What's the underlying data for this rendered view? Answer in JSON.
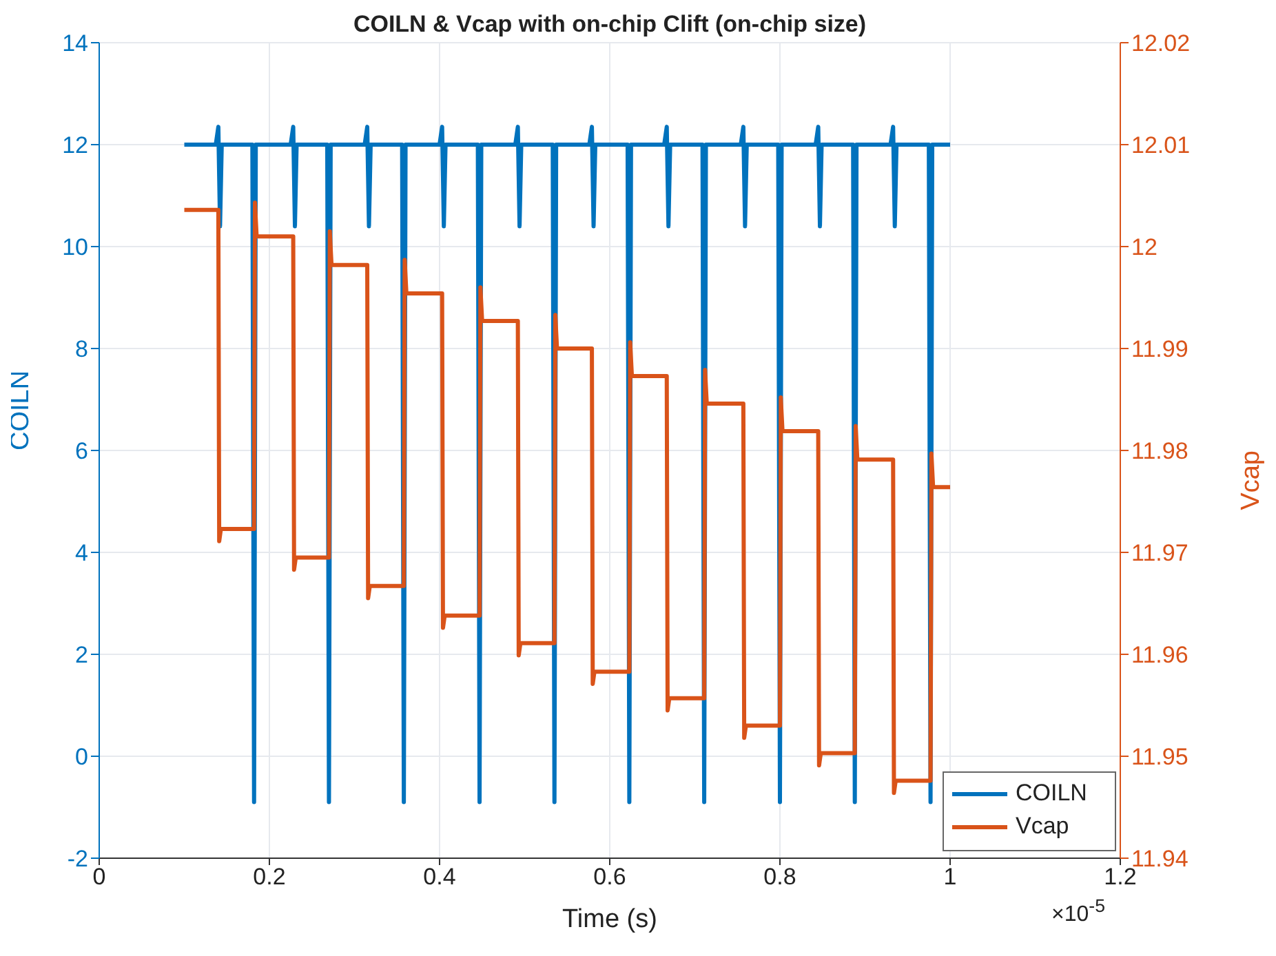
{
  "chart_data": {
    "type": "line",
    "title": "COILN & Vcap with on-chip Clift (on-chip size)",
    "xlabel": "Time (s)",
    "ylabel": "COILN",
    "y2label": "Vcap",
    "annotations": [
      "×10$^{-5}$"
    ],
    "xlim": [
      0,
      1.2
    ],
    "xticks": [
      0,
      0.2,
      0.4,
      0.6,
      0.8,
      1,
      1.2
    ],
    "ylim": [
      -2,
      14
    ],
    "yticks": [
      -2,
      0,
      2,
      4,
      6,
      8,
      10,
      12,
      14
    ],
    "y2lim": [
      11.94,
      12.02
    ],
    "y2ticks": [
      11.94,
      11.95,
      11.96,
      11.97,
      11.98,
      11.99,
      12,
      12.01,
      12.02
    ],
    "grid": true,
    "legend": "bottom right",
    "line_style": "solid",
    "series": [
      {
        "name": "COILN",
        "color": "#0072bd",
        "x": [
          0.1,
          0.137,
          0.14,
          0.142,
          0.144,
          0.18,
          0.182,
          0.184,
          0.225,
          0.228,
          0.23,
          0.232,
          0.268,
          0.27,
          0.272,
          0.312,
          0.315,
          0.317,
          0.319,
          0.356,
          0.358,
          0.36,
          0.4,
          0.403,
          0.405,
          0.407,
          0.445,
          0.447,
          0.449,
          0.489,
          0.492,
          0.494,
          0.496,
          0.533,
          0.535,
          0.537,
          0.576,
          0.579,
          0.581,
          0.583,
          0.621,
          0.623,
          0.625,
          0.664,
          0.667,
          0.669,
          0.671,
          0.709,
          0.711,
          0.713,
          0.754,
          0.757,
          0.759,
          0.761,
          0.798,
          0.8,
          0.802,
          0.842,
          0.845,
          0.847,
          0.849,
          0.886,
          0.888,
          0.89,
          0.93,
          0.933,
          0.935,
          0.937,
          0.975,
          0.977,
          0.979,
          1.0
        ],
        "values": [
          12,
          12,
          12.35,
          10.4,
          12,
          12,
          -0.9,
          12,
          12,
          12.35,
          10.4,
          12,
          12,
          -0.9,
          12,
          12,
          12.35,
          10.4,
          12,
          12,
          -0.9,
          12,
          12,
          12.35,
          10.4,
          12,
          12,
          -0.9,
          12,
          12,
          12.35,
          10.4,
          12,
          12,
          -0.9,
          12,
          12,
          12.35,
          10.4,
          12,
          12,
          -0.9,
          12,
          12,
          12.35,
          10.4,
          12,
          12,
          -0.9,
          12,
          12,
          12.35,
          10.4,
          12,
          12,
          -0.9,
          12,
          12,
          12.35,
          10.4,
          12,
          12,
          -0.9,
          12,
          12,
          12.35,
          10.4,
          12,
          12,
          -0.9,
          12,
          12
        ]
      },
      {
        "name": "Vcap",
        "color": "#d95319",
        "axis": "y2",
        "x": [
          0.1,
          0.14,
          0.141,
          0.143,
          0.182,
          0.183,
          0.185,
          0.228,
          0.229,
          0.231,
          0.27,
          0.271,
          0.273,
          0.315,
          0.316,
          0.318,
          0.358,
          0.359,
          0.361,
          0.403,
          0.404,
          0.406,
          0.447,
          0.448,
          0.45,
          0.492,
          0.493,
          0.495,
          0.535,
          0.536,
          0.538,
          0.579,
          0.58,
          0.582,
          0.623,
          0.624,
          0.626,
          0.667,
          0.668,
          0.67,
          0.711,
          0.712,
          0.714,
          0.757,
          0.758,
          0.76,
          0.8,
          0.801,
          0.803,
          0.845,
          0.846,
          0.848,
          0.888,
          0.889,
          0.891,
          0.933,
          0.934,
          0.936,
          0.977,
          0.978,
          0.98,
          1.0
        ],
        "values": [
          12.0036,
          12.0036,
          11.9711,
          11.9723,
          11.9723,
          12.0043,
          12.001,
          12.001,
          11.9683,
          11.9695,
          11.9695,
          12.0015,
          11.9982,
          11.9982,
          11.9655,
          11.9667,
          11.9667,
          11.9987,
          11.9954,
          11.9954,
          11.9626,
          11.9638,
          11.9638,
          11.996,
          11.9927,
          11.9927,
          11.9599,
          11.9611,
          11.9611,
          11.9933,
          11.99,
          11.99,
          11.9571,
          11.9583,
          11.9583,
          11.9906,
          11.9873,
          11.9873,
          11.9545,
          11.9557,
          11.9557,
          11.9879,
          11.9846,
          11.9846,
          11.9518,
          11.953,
          11.953,
          11.9852,
          11.9819,
          11.9819,
          11.9491,
          11.9503,
          11.9503,
          11.9824,
          11.9791,
          11.9791,
          11.9464,
          11.9476,
          11.9476,
          11.9797,
          11.9764,
          11.9764
        ]
      }
    ]
  }
}
